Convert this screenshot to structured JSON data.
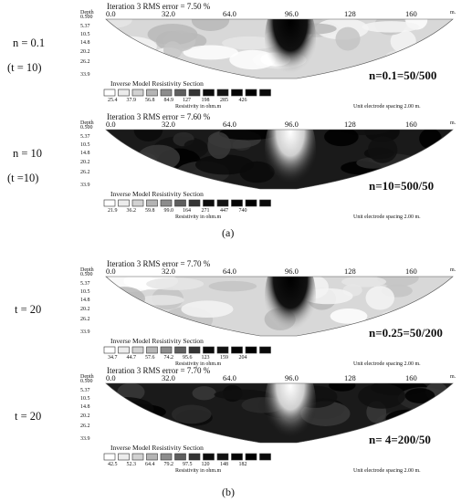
{
  "panels": [
    {
      "side_labels": [
        "n = 0.1",
        "(t  =  10)"
      ],
      "rms_text": "Iteration 3 RMS error = 7.50 %",
      "depth_label": "Depth",
      "depth_ticks": [
        "0.500",
        "5.37",
        "10.5",
        "14.8",
        "20.2",
        "26.2",
        "33.9"
      ],
      "x_ticks": [
        "0.0",
        "32.0",
        "64.0",
        "96.0",
        "128",
        "160"
      ],
      "x_unit": "m.",
      "section_title": "Inverse Model Resistivity Section",
      "legend_values": [
        "25.4",
        "37.9",
        "56.8",
        "84.9",
        "127",
        "198",
        "285",
        "426"
      ],
      "resistivity_label": "Resistivity in ohm.m",
      "spacing_label": "Unit electrode spacing 2.00 m.",
      "ratio_label": "n=0.1=50/500",
      "theme": "light"
    },
    {
      "side_labels": [
        "n = 10",
        "(t =10)"
      ],
      "rms_text": "Iteration 3 RMS error = 7.60 %",
      "depth_label": "Depth",
      "depth_ticks": [
        "0.500",
        "5.37",
        "10.5",
        "14.8",
        "20.2",
        "26.2",
        "33.9"
      ],
      "x_ticks": [
        "0.0",
        "32.0",
        "64.0",
        "96.0",
        "128",
        "160"
      ],
      "x_unit": "m.",
      "section_title": "Inverse Model Resistivity Section",
      "legend_values": [
        "21.9",
        "36.2",
        "59.8",
        "99.0",
        "164",
        "271",
        "447",
        "740"
      ],
      "resistivity_label": "Resistivity in ohm.m",
      "spacing_label": "Unit electrode spacing 2.00 m.",
      "ratio_label": "n=10=500/50",
      "theme": "dark"
    },
    {
      "side_labels": [
        "t = 20"
      ],
      "rms_text": "Iteration 3 RMS error = 7.70 %",
      "depth_label": "Depth",
      "depth_ticks": [
        "0.500",
        "5.37",
        "10.5",
        "14.8",
        "20.2",
        "26.2",
        "33.9"
      ],
      "x_ticks": [
        "0.0",
        "32.0",
        "64.0",
        "96.0",
        "128",
        "160"
      ],
      "x_unit": "m.",
      "section_title": "Inverse Model Resistivity Section",
      "legend_values": [
        "34.7",
        "44.7",
        "57.6",
        "74.2",
        "95.6",
        "123",
        "159",
        "204"
      ],
      "resistivity_label": "Resistivity in ohm.m",
      "spacing_label": "Unit electrode spacing 2.00 m.",
      "ratio_label": "n=0.25=50/200",
      "theme": "light"
    },
    {
      "side_labels": [
        "t = 20"
      ],
      "rms_text": "Iteration 3 RMS error = 7.70 %",
      "depth_label": "Depth",
      "depth_ticks": [
        "0.500",
        "5.37",
        "10.5",
        "14.8",
        "20.2",
        "26.2",
        "33.9"
      ],
      "x_ticks": [
        "0.0",
        "32.0",
        "64.0",
        "96.0",
        "128",
        "160"
      ],
      "x_unit": "m.",
      "section_title": "Inverse Model Resistivity Section",
      "legend_values": [
        "42.5",
        "52.3",
        "64.4",
        "79.2",
        "97.5",
        "120",
        "148",
        "182"
      ],
      "resistivity_label": "Resistivity in ohm.m",
      "spacing_label": "Unit electrode spacing 2.00 m.",
      "ratio_label": "n= 4=200/50",
      "theme": "dark"
    }
  ],
  "captions": {
    "a": "(a)",
    "b": "(b)"
  },
  "legend_swatch_colors": [
    "#ffffff",
    "#ececec",
    "#d2d2d2",
    "#b4b4b4",
    "#8c8c8c",
    "#5e5e5e",
    "#343434",
    "#0c0c0c"
  ]
}
